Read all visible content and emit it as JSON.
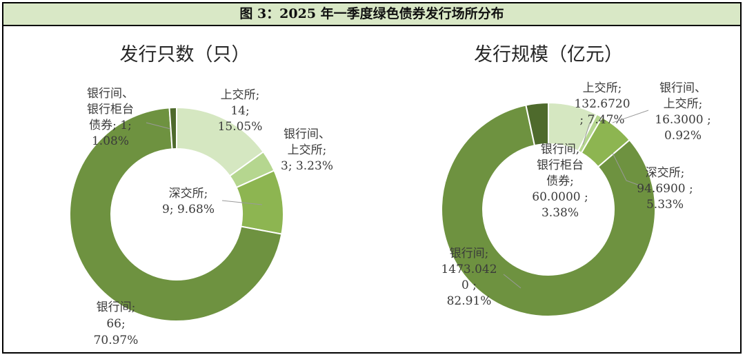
{
  "figure_title": "图 3：2025 年一季度绿色债券发行场所分布",
  "chart_data": [
    {
      "type": "pie",
      "variant": "doughnut",
      "title": "发行只数（只）",
      "unit": "只",
      "slices": [
        {
          "name": "上交所",
          "value": 14,
          "percent": "15.05%",
          "color": "#d5e7c1",
          "label_lines": [
            "上交所;",
            "14;",
            "15.05%"
          ]
        },
        {
          "name": "银行间、上交所",
          "value": 3,
          "percent": "3.23%",
          "color": "#b5d68f",
          "label_lines": [
            "银行间、",
            "上交所;",
            "3; 3.23%"
          ]
        },
        {
          "name": "深交所",
          "value": 9,
          "percent": "9.68%",
          "color": "#8db551",
          "label_lines": [
            "深交所;",
            "9; 9.68%"
          ]
        },
        {
          "name": "银行间",
          "value": 66,
          "percent": "70.97%",
          "color": "#6e9240",
          "label_lines": [
            "银行间;",
            "66;",
            "70.97%"
          ]
        },
        {
          "name": "银行间、银行柜台债券",
          "value": 1,
          "percent": "1.08%",
          "color": "#4e6a2c",
          "label_lines": [
            "银行间、",
            "银行柜台",
            "债券; 1;",
            "1.08%"
          ]
        }
      ]
    },
    {
      "type": "pie",
      "variant": "doughnut",
      "title": "发行规模（亿元）",
      "unit": "亿元",
      "slices": [
        {
          "name": "上交所",
          "value": 132.672,
          "percent": "7.47%",
          "color": "#d5e7c1",
          "label_lines": [
            "上交所;",
            "132.6720",
            "; 7.47%"
          ]
        },
        {
          "name": "银行间、上交所",
          "value": 16.3,
          "percent": "0.92%",
          "color": "#b5d68f",
          "label_lines": [
            "银行间、",
            "上交所;",
            "16.3000 ;",
            "0.92%"
          ]
        },
        {
          "name": "深交所",
          "value": 94.69,
          "percent": "5.33%",
          "color": "#8db551",
          "label_lines": [
            "深交所;",
            "94.6900 ;",
            "5.33%"
          ]
        },
        {
          "name": "银行间",
          "value": 1473.042,
          "percent": "82.91%",
          "color": "#6e9240",
          "label_lines": [
            "银行间;",
            "1473.042",
            "0 ;",
            "82.91%"
          ]
        },
        {
          "name": "银行间、银行柜台债券",
          "value": 60.0,
          "percent": "3.38%",
          "color": "#4e6a2c",
          "label_lines": [
            "银行间,",
            "银行柜台",
            "债券;",
            "60.0000 ;",
            "3.38%"
          ]
        }
      ]
    }
  ]
}
